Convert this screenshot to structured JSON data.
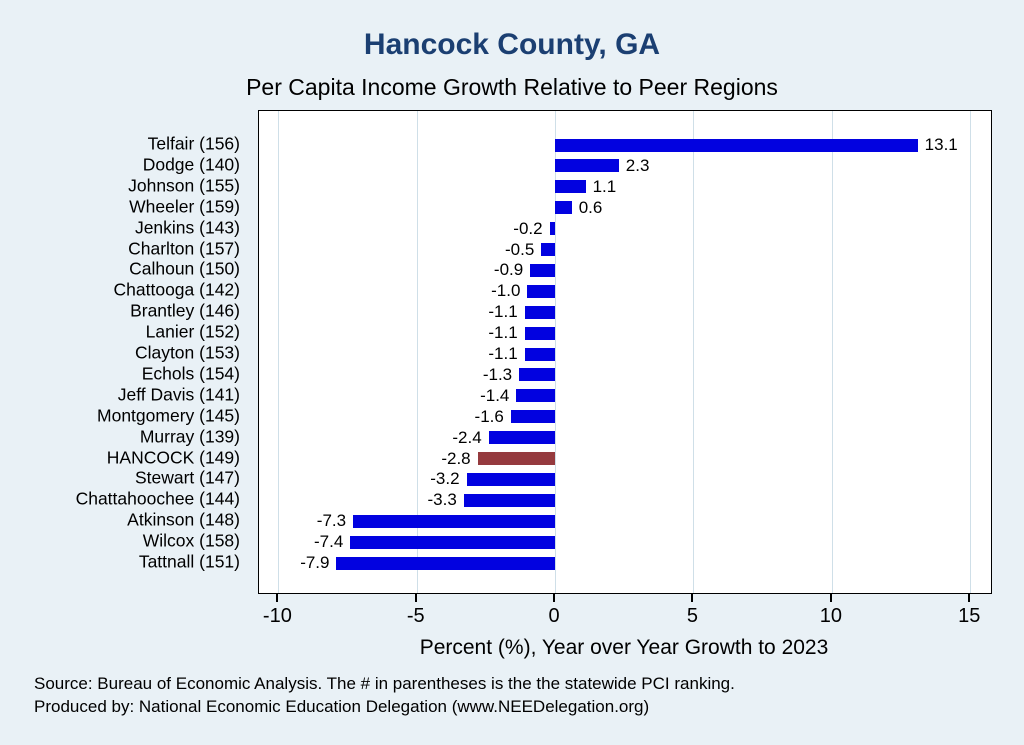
{
  "header": {
    "title": "Hancock County, GA",
    "subtitle": "Per Capita Income Growth Relative to Peer Regions"
  },
  "chart_data": {
    "type": "bar",
    "orientation": "horizontal",
    "title": "Hancock County, GA",
    "subtitle": "Per Capita Income Growth Relative to Peer Regions",
    "xlabel": "Percent (%), Year over Year Growth to 2023",
    "categories": [
      "Telfair (156)",
      "Dodge (140)",
      "Johnson (155)",
      "Wheeler (159)",
      "Jenkins (143)",
      "Charlton (157)",
      "Calhoun (150)",
      "Chattooga (142)",
      "Brantley (146)",
      "Lanier (152)",
      "Clayton (153)",
      "Echols (154)",
      "Jeff Davis (141)",
      "Montgomery (145)",
      "Murray (139)",
      "HANCOCK (149)",
      "Stewart (147)",
      "Chattahoochee (144)",
      "Atkinson (148)",
      "Wilcox (158)",
      "Tattnall (151)"
    ],
    "values": [
      13.1,
      2.3,
      1.1,
      0.6,
      -0.2,
      -0.5,
      -0.9,
      -1.0,
      -1.1,
      -1.1,
      -1.1,
      -1.3,
      -1.4,
      -1.6,
      -2.4,
      -2.8,
      -3.2,
      -3.3,
      -7.3,
      -7.4,
      -7.9
    ],
    "value_labels": [
      "13.1",
      "2.3",
      "1.1",
      "0.6",
      "-0.2",
      "-0.5",
      "-0.9",
      "-1.0",
      "-1.1",
      "-1.1",
      "-1.1",
      "-1.3",
      "-1.4",
      "-1.6",
      "-2.4",
      "-2.8",
      "-3.2",
      "-3.3",
      "-7.3",
      "-7.4",
      "-7.9"
    ],
    "highlight_category": "HANCOCK (149)",
    "highlight_index": 15,
    "bar_color": "#0202e0",
    "highlight_color": "#953a3e",
    "x_ticks": [
      "-10",
      "-5",
      "0",
      "5",
      "10",
      "15"
    ],
    "x_tick_values": [
      -10,
      -5,
      0,
      5,
      10,
      15
    ],
    "xlim": [
      -10.7,
      15.75
    ],
    "grid": true,
    "legend": "none",
    "plot_background": "#ffffff",
    "page_background": "#e9f1f6",
    "title_color": "#1b3f72"
  },
  "footer": {
    "source_line": "Source: Bureau of Economic Analysis. The # in parentheses is the the statewide PCI ranking.",
    "produced_line": "Produced by: National Economic Education Delegation (www.NEEDelegation.org)"
  }
}
